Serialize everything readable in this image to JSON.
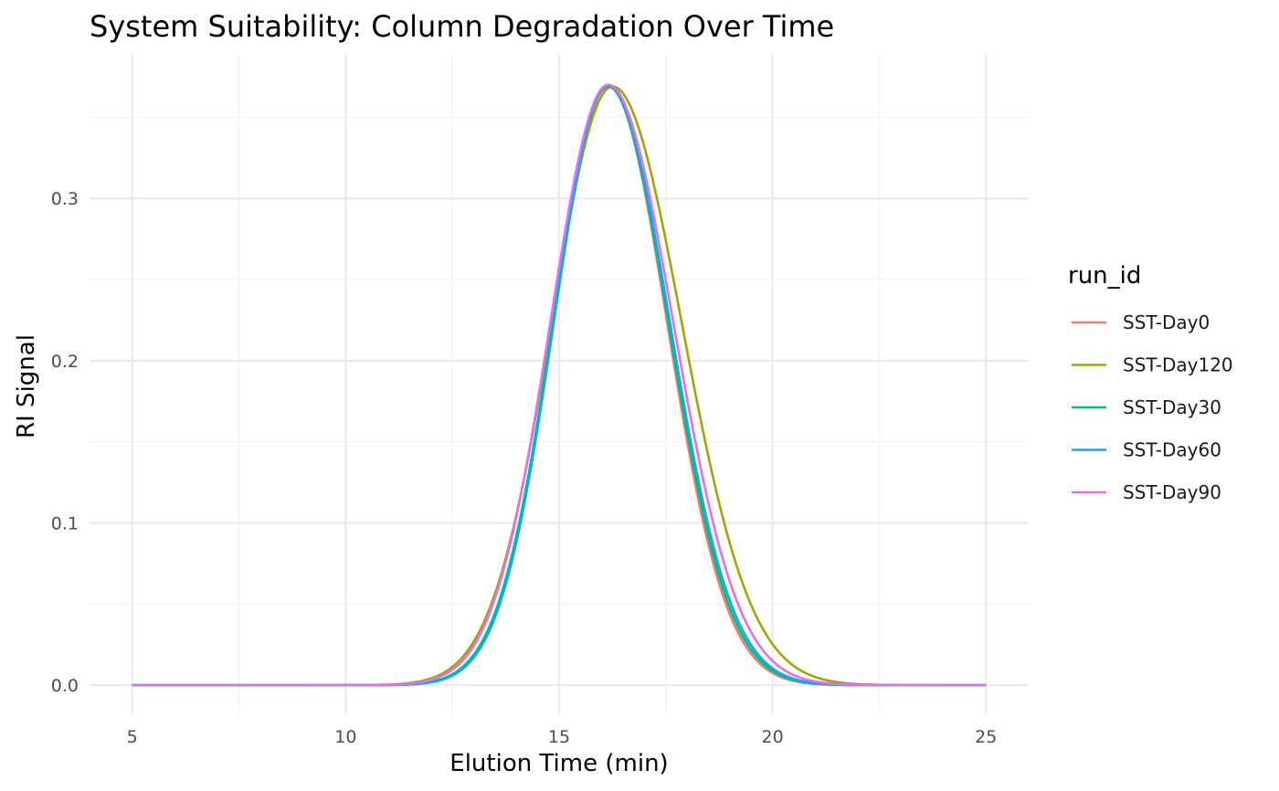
{
  "chart_data": {
    "type": "line",
    "title": "System Suitability: Column Degradation Over Time",
    "xlabel": "Elution Time (min)",
    "ylabel": "RI Signal",
    "xlim": [
      4.0,
      26.0
    ],
    "ylim": [
      -0.0185,
      0.3885
    ],
    "x_ticks": [
      5,
      10,
      15,
      20,
      25
    ],
    "x_tick_labels": [
      "5",
      "10",
      "15",
      "20",
      "25"
    ],
    "y_ticks": [
      0.0,
      0.1,
      0.2,
      0.3
    ],
    "y_tick_labels": [
      "0.0",
      "0.1",
      "0.2",
      "0.3"
    ],
    "grid": true,
    "legend": {
      "title": "run_id",
      "position": "right"
    },
    "x_range": [
      5,
      25
    ],
    "series": [
      {
        "name": "SST-Day0",
        "color": "#F8766D",
        "peak_time": 16.15,
        "peak_height": 0.369,
        "sigma_left": 1.28,
        "sigma_right": 1.38
      },
      {
        "name": "SST-Day120",
        "color": "#A3A500",
        "peak_time": 16.25,
        "peak_height": 0.369,
        "sigma_left": 1.42,
        "sigma_right": 1.62
      },
      {
        "name": "SST-Day30",
        "color": "#00BF7D",
        "peak_time": 16.15,
        "peak_height": 0.369,
        "sigma_left": 1.29,
        "sigma_right": 1.41
      },
      {
        "name": "SST-Day60",
        "color": "#00B0F6",
        "peak_time": 16.15,
        "peak_height": 0.37,
        "sigma_left": 1.27,
        "sigma_right": 1.44
      },
      {
        "name": "SST-Day90",
        "color": "#E76BF3",
        "peak_time": 16.15,
        "peak_height": 0.37,
        "sigma_left": 1.35,
        "sigma_right": 1.52
      }
    ]
  }
}
